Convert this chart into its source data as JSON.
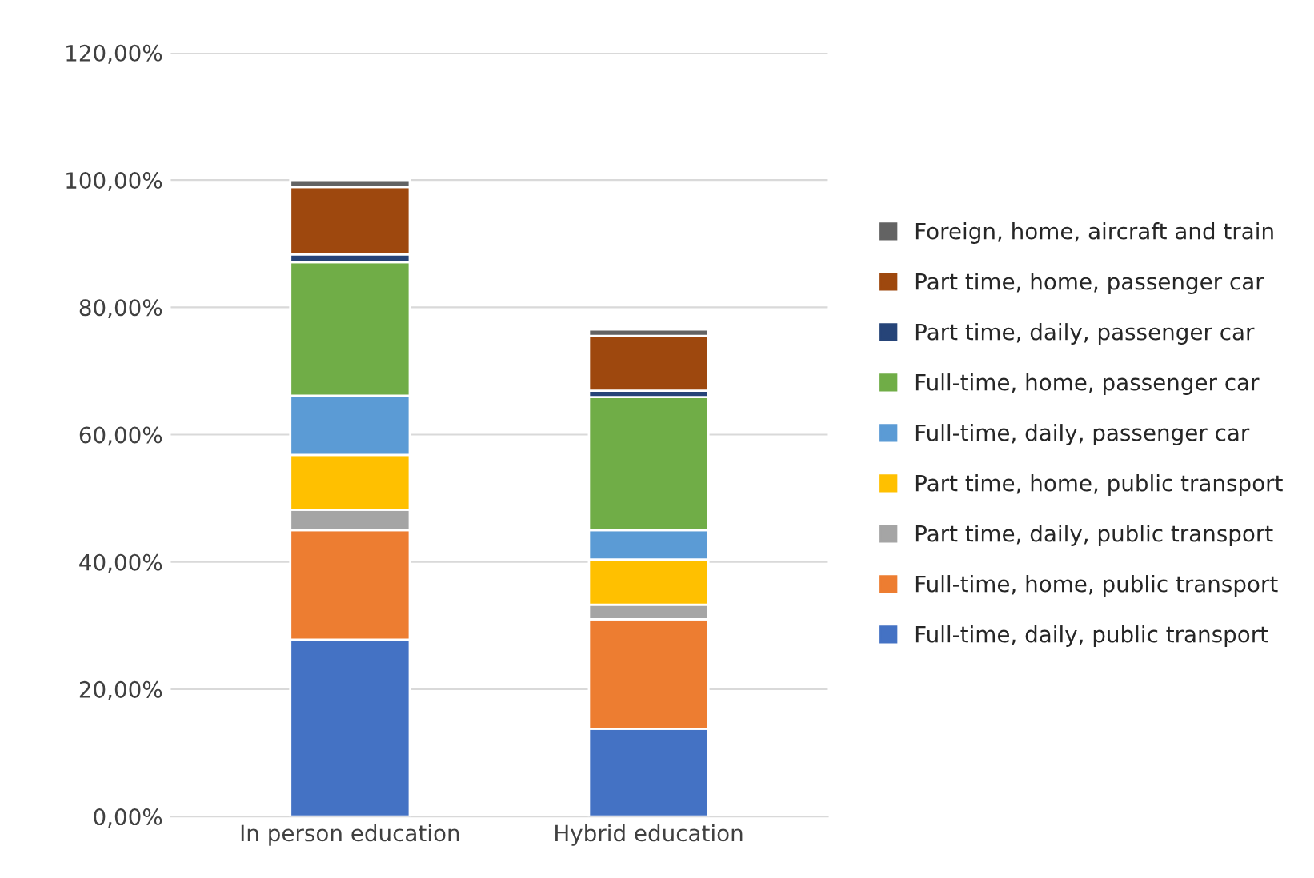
{
  "chart_data": {
    "type": "bar",
    "stacked": true,
    "categories": [
      "In person education",
      "Hybrid education"
    ],
    "series": [
      {
        "name": "Full-time, daily, public transport",
        "color": "#4472c4",
        "values": [
          27.8,
          13.8
        ]
      },
      {
        "name": "Full-time, home, public transport",
        "color": "#ed7d31",
        "values": [
          17.2,
          17.2
        ]
      },
      {
        "name": "Part time, daily, public transport",
        "color": "#a5a5a5",
        "values": [
          3.2,
          2.3
        ]
      },
      {
        "name": "Part time, home, public transport",
        "color": "#ffc000",
        "values": [
          8.6,
          7.1
        ]
      },
      {
        "name": "Full-time, daily, passenger car",
        "color": "#5b9bd5",
        "values": [
          9.3,
          4.6
        ]
      },
      {
        "name": "Full-time, home, passenger car",
        "color": "#70ad47",
        "values": [
          21.0,
          20.9
        ]
      },
      {
        "name": "Part time, daily, passenger car",
        "color": "#264478",
        "values": [
          1.2,
          1.0
        ]
      },
      {
        "name": "Part time, home, passenger car",
        "color": "#9e480e",
        "values": [
          10.6,
          8.6
        ]
      },
      {
        "name": "Foreign, home, aircraft and train",
        "color": "#636363",
        "values": [
          1.1,
          1.0
        ]
      }
    ],
    "ylim": [
      0,
      120
    ],
    "yticks": [
      {
        "value": 0,
        "label": "0,00%"
      },
      {
        "value": 20,
        "label": "20,00%"
      },
      {
        "value": 40,
        "label": "40,00%"
      },
      {
        "value": 60,
        "label": "60,00%"
      },
      {
        "value": 80,
        "label": "80,00%"
      },
      {
        "value": 100,
        "label": "100,00%"
      },
      {
        "value": 120,
        "label": "120,00%"
      }
    ],
    "grid": "y",
    "legend": "right"
  }
}
